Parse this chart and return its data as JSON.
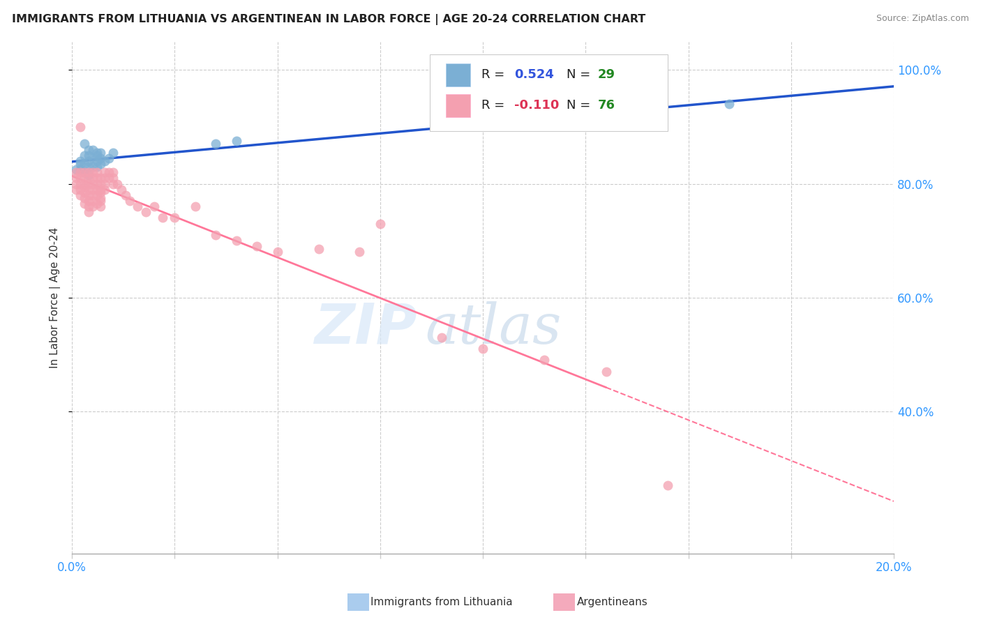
{
  "title": "IMMIGRANTS FROM LITHUANIA VS ARGENTINEAN IN LABOR FORCE | AGE 20-24 CORRELATION CHART",
  "source": "Source: ZipAtlas.com",
  "ylabel": "In Labor Force | Age 20-24",
  "xlim": [
    0.0,
    0.2
  ],
  "ylim": [
    0.15,
    1.05
  ],
  "yticks_right": [
    0.4,
    0.6,
    0.8,
    1.0
  ],
  "ytick_right_labels": [
    "40.0%",
    "60.0%",
    "80.0%",
    "100.0%"
  ],
  "blue_color": "#7BAFD4",
  "pink_color": "#F4A0B0",
  "blue_line_color": "#2255CC",
  "pink_line_color": "#FF7799",
  "R_blue": 0.524,
  "N_blue": 29,
  "R_pink": -0.11,
  "N_pink": 76,
  "watermark_zip": "ZIP",
  "watermark_atlas": "atlas",
  "blue_dots_x": [
    0.001,
    0.002,
    0.002,
    0.002,
    0.003,
    0.003,
    0.003,
    0.003,
    0.004,
    0.004,
    0.004,
    0.004,
    0.004,
    0.005,
    0.005,
    0.005,
    0.006,
    0.006,
    0.006,
    0.006,
    0.007,
    0.007,
    0.007,
    0.008,
    0.009,
    0.01,
    0.035,
    0.04,
    0.16
  ],
  "blue_dots_y": [
    0.825,
    0.825,
    0.835,
    0.84,
    0.82,
    0.835,
    0.85,
    0.87,
    0.815,
    0.83,
    0.84,
    0.85,
    0.86,
    0.83,
    0.845,
    0.86,
    0.83,
    0.84,
    0.85,
    0.855,
    0.835,
    0.845,
    0.855,
    0.84,
    0.845,
    0.855,
    0.87,
    0.875,
    0.94
  ],
  "pink_dots_x": [
    0.001,
    0.001,
    0.001,
    0.001,
    0.002,
    0.002,
    0.002,
    0.002,
    0.002,
    0.002,
    0.003,
    0.003,
    0.003,
    0.003,
    0.003,
    0.003,
    0.003,
    0.004,
    0.004,
    0.004,
    0.004,
    0.004,
    0.004,
    0.004,
    0.004,
    0.005,
    0.005,
    0.005,
    0.005,
    0.005,
    0.005,
    0.005,
    0.006,
    0.006,
    0.006,
    0.006,
    0.006,
    0.006,
    0.007,
    0.007,
    0.007,
    0.007,
    0.007,
    0.007,
    0.007,
    0.008,
    0.008,
    0.008,
    0.008,
    0.009,
    0.009,
    0.01,
    0.01,
    0.01,
    0.011,
    0.012,
    0.013,
    0.014,
    0.016,
    0.018,
    0.02,
    0.022,
    0.025,
    0.03,
    0.035,
    0.04,
    0.045,
    0.05,
    0.06,
    0.07,
    0.075,
    0.09,
    0.1,
    0.115,
    0.13,
    0.145
  ],
  "pink_dots_y": [
    0.82,
    0.81,
    0.8,
    0.79,
    0.82,
    0.81,
    0.8,
    0.79,
    0.78,
    0.9,
    0.82,
    0.81,
    0.8,
    0.795,
    0.785,
    0.775,
    0.765,
    0.82,
    0.81,
    0.8,
    0.79,
    0.78,
    0.77,
    0.76,
    0.75,
    0.82,
    0.81,
    0.8,
    0.79,
    0.78,
    0.77,
    0.76,
    0.82,
    0.81,
    0.8,
    0.79,
    0.78,
    0.765,
    0.81,
    0.8,
    0.79,
    0.785,
    0.775,
    0.77,
    0.76,
    0.82,
    0.81,
    0.8,
    0.79,
    0.82,
    0.81,
    0.82,
    0.81,
    0.8,
    0.8,
    0.79,
    0.78,
    0.77,
    0.76,
    0.75,
    0.76,
    0.74,
    0.74,
    0.76,
    0.71,
    0.7,
    0.69,
    0.68,
    0.685,
    0.68,
    0.73,
    0.53,
    0.51,
    0.49,
    0.47,
    0.27
  ]
}
